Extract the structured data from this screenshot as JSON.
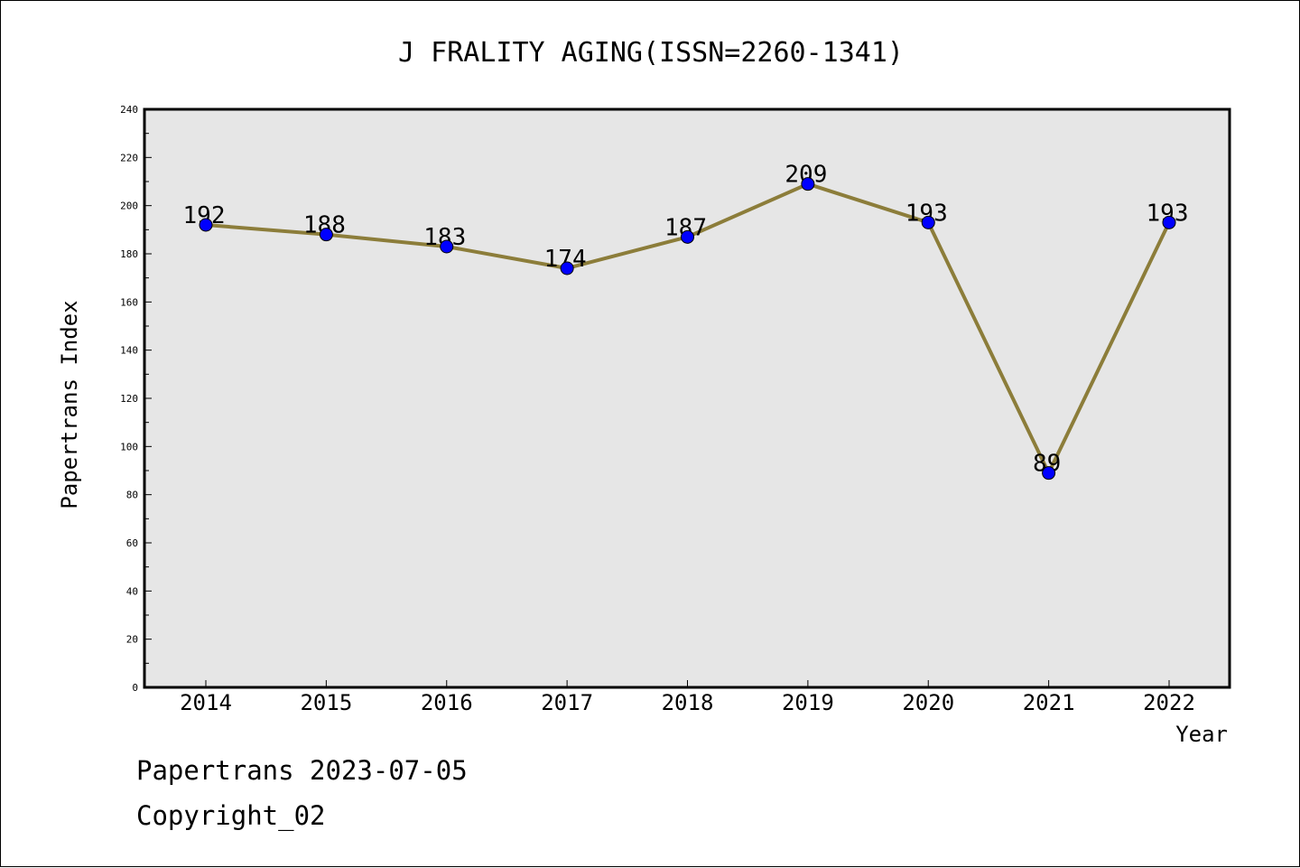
{
  "chart_data": {
    "type": "line",
    "title": "J FRALITY AGING(ISSN=2260-1341)",
    "xlabel": "Year",
    "ylabel": "Papertrans Index",
    "categories": [
      "2014",
      "2015",
      "2016",
      "2017",
      "2018",
      "2019",
      "2020",
      "2021",
      "2022"
    ],
    "values": [
      192,
      188,
      183,
      174,
      187,
      209,
      193,
      89,
      193
    ],
    "data_labels": [
      "192",
      "188",
      "183",
      "174",
      "187",
      "209",
      "193",
      "89",
      "193"
    ],
    "ylim": [
      0,
      240
    ],
    "yticks": [
      0,
      20,
      40,
      60,
      80,
      100,
      120,
      140,
      160,
      180,
      200,
      220,
      240
    ],
    "ytick_labels": [
      "0",
      "20",
      "40",
      "60",
      "80",
      "100",
      "120",
      "140",
      "160",
      "180",
      "200",
      "220",
      "240"
    ],
    "grid": false,
    "line_color": "#8c7d3a",
    "marker_color": "#0000ff",
    "plot_background": "#e6e6e6"
  },
  "footer": {
    "source": "Papertrans 2023-07-05",
    "copyright": "Copyright_02"
  }
}
